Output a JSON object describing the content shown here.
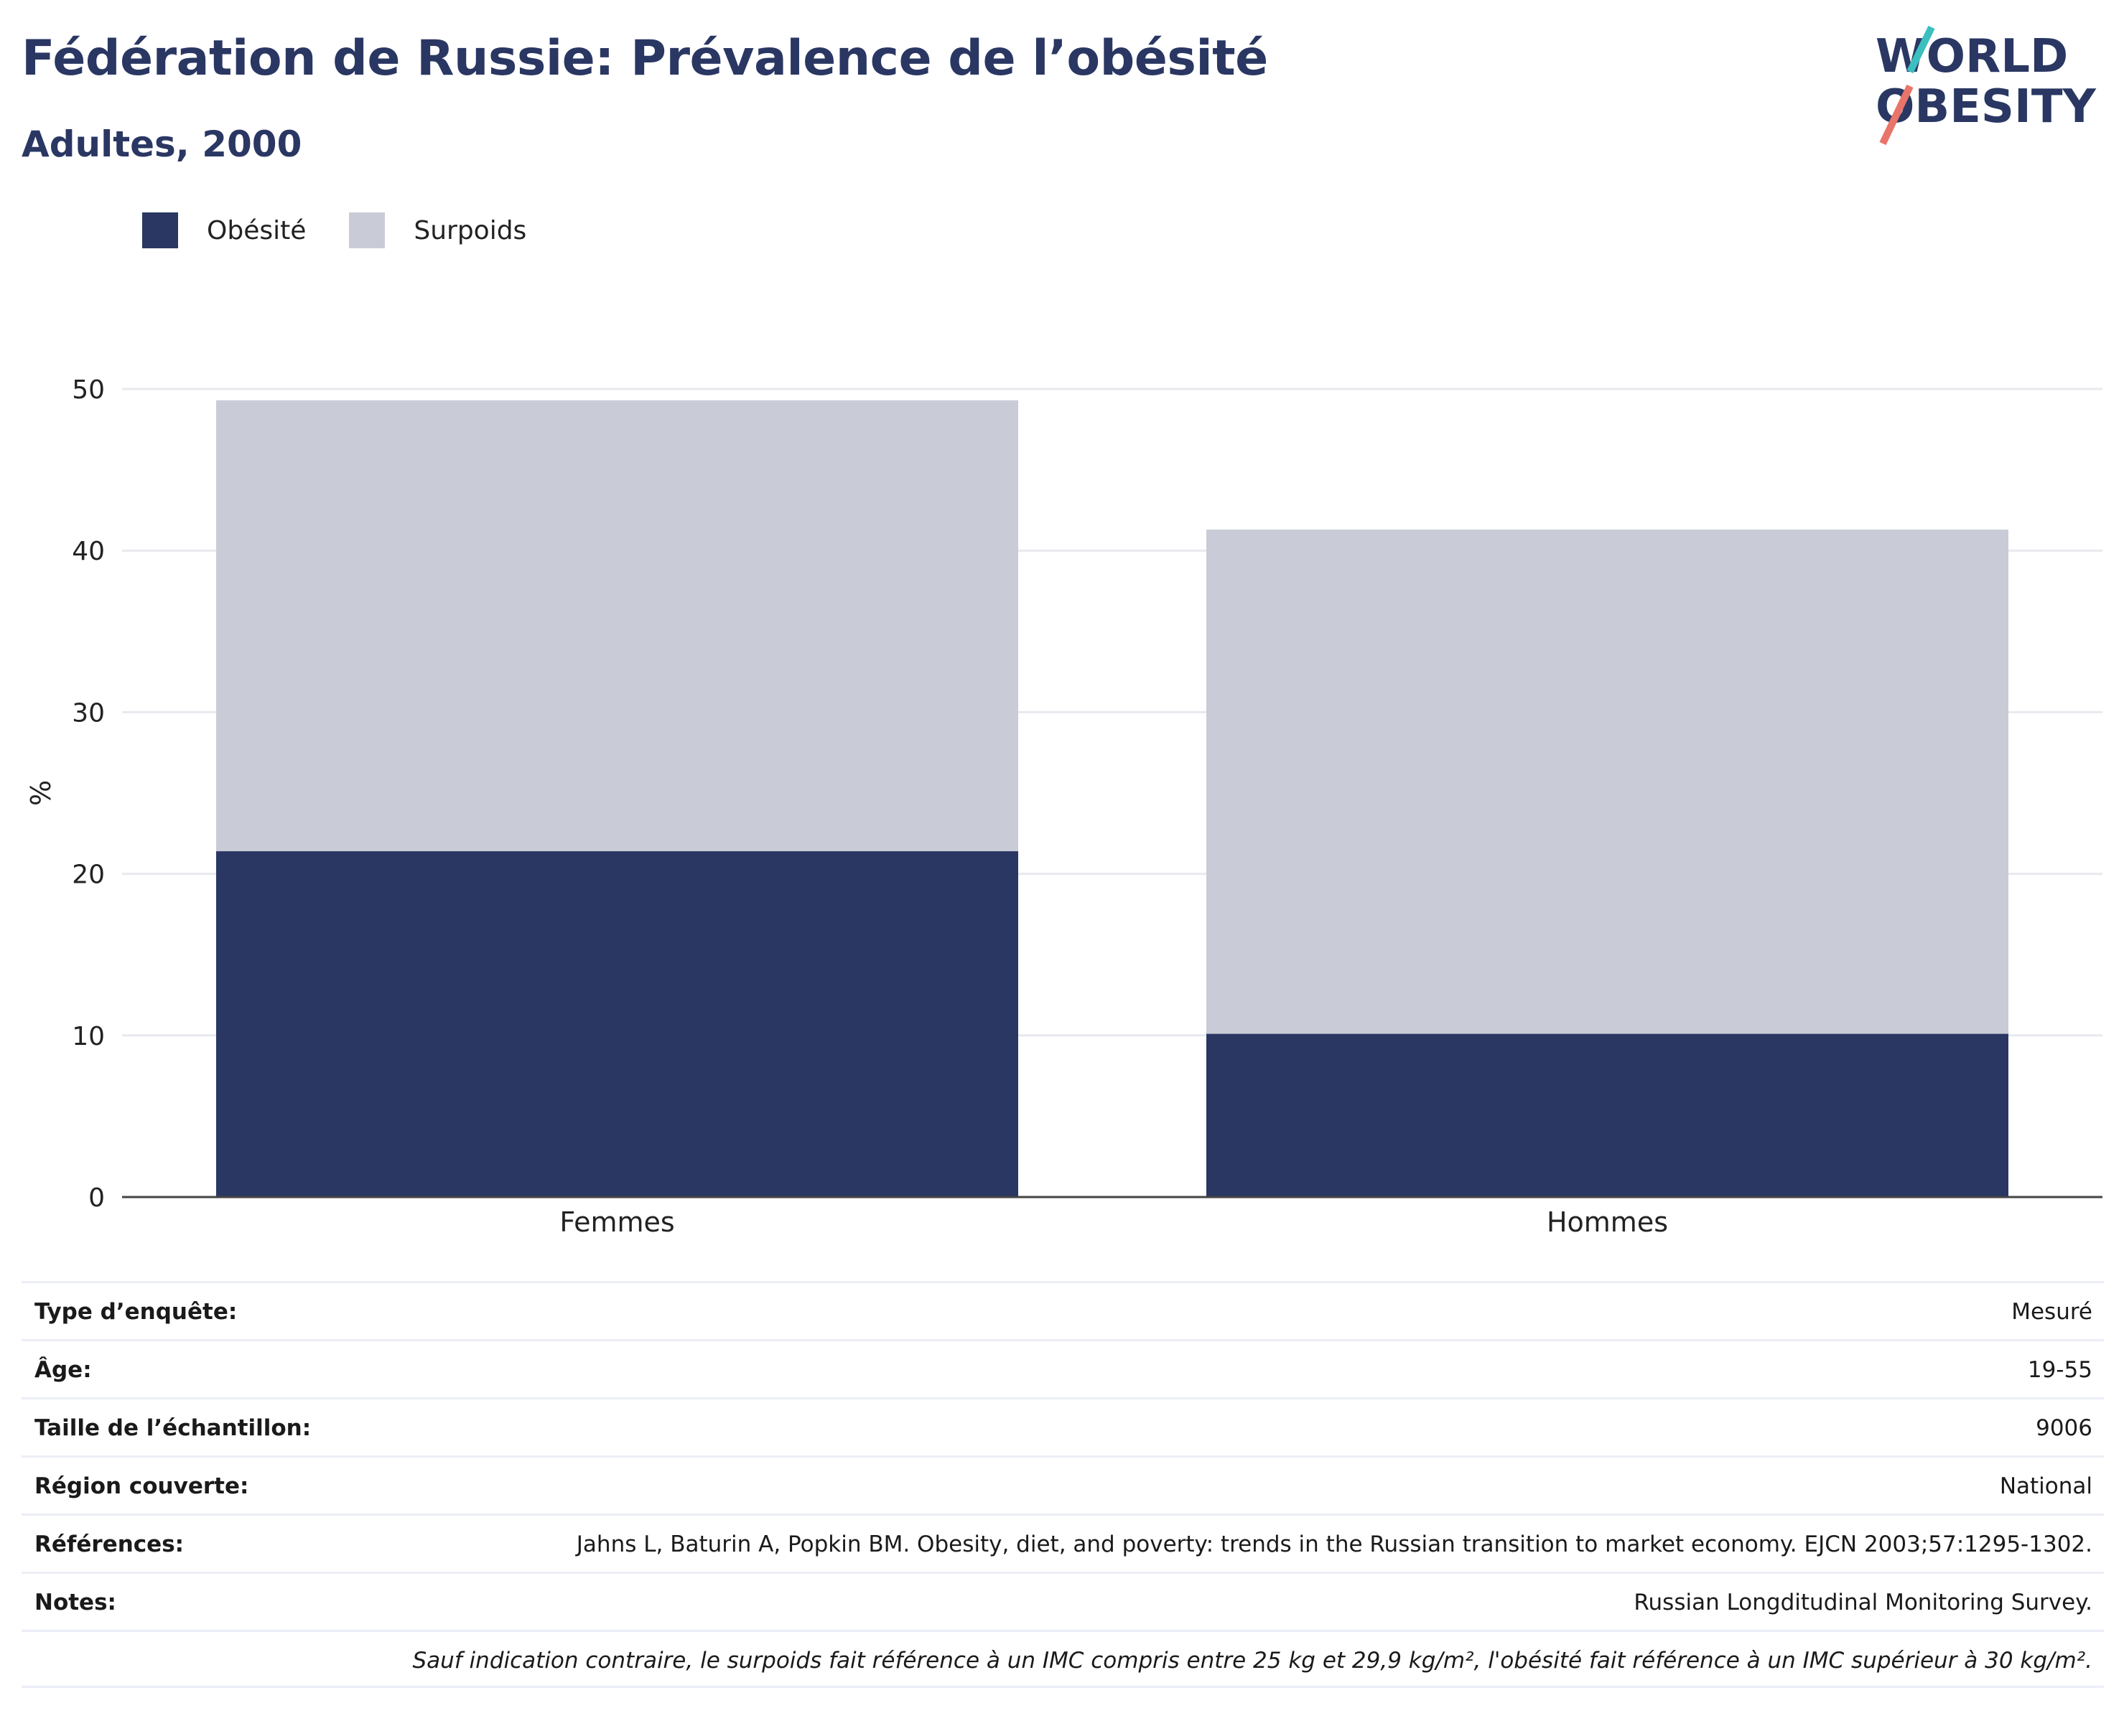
{
  "header": {
    "title": "Fédération de Russie: Prévalence de l’obésité",
    "subtitle": "Adultes, 2000"
  },
  "logo": {
    "line1": "WORLD",
    "line2": "OBESITY"
  },
  "colors": {
    "obesity": "#2a3763",
    "overweight": "#c9ccd7",
    "title": "#2a3763"
  },
  "legend": {
    "items": [
      {
        "label": "Obésité",
        "color": "#2a3763"
      },
      {
        "label": "Surpoids",
        "color": "#c9ccd7"
      }
    ]
  },
  "chart_data": {
    "type": "bar",
    "stacked": true,
    "categories": [
      "Femmes",
      "Hommes"
    ],
    "series": [
      {
        "name": "Obésité",
        "values": [
          21.4,
          10.1
        ]
      },
      {
        "name": "Surpoids",
        "values": [
          27.9,
          31.2
        ]
      }
    ],
    "ylabel": "%",
    "ylim": [
      0,
      50
    ],
    "yticks": [
      0,
      10,
      20,
      30,
      40,
      50
    ],
    "grid": true,
    "legend_position": "top-left"
  },
  "info": {
    "rows": [
      {
        "key": "Type d’enquête:",
        "value": "Mesuré"
      },
      {
        "key": "Âge:",
        "value": "19-55"
      },
      {
        "key": "Taille de l’échantillon:",
        "value": "9006"
      },
      {
        "key": "Région couverte:",
        "value": "National"
      },
      {
        "key": "Références:",
        "value": "Jahns L, Baturin A, Popkin BM. Obesity, diet, and poverty: trends in the Russian transition to market economy. EJCN 2003;57:1295-1302."
      },
      {
        "key": "Notes:",
        "value": "Russian Longditudinal Monitoring Survey."
      }
    ],
    "footnote": "Sauf indication contraire, le surpoids fait référence à un IMC compris entre 25 kg et 29,9 kg/m², l'obésité fait référence à un IMC supérieur à 30 kg/m²."
  }
}
